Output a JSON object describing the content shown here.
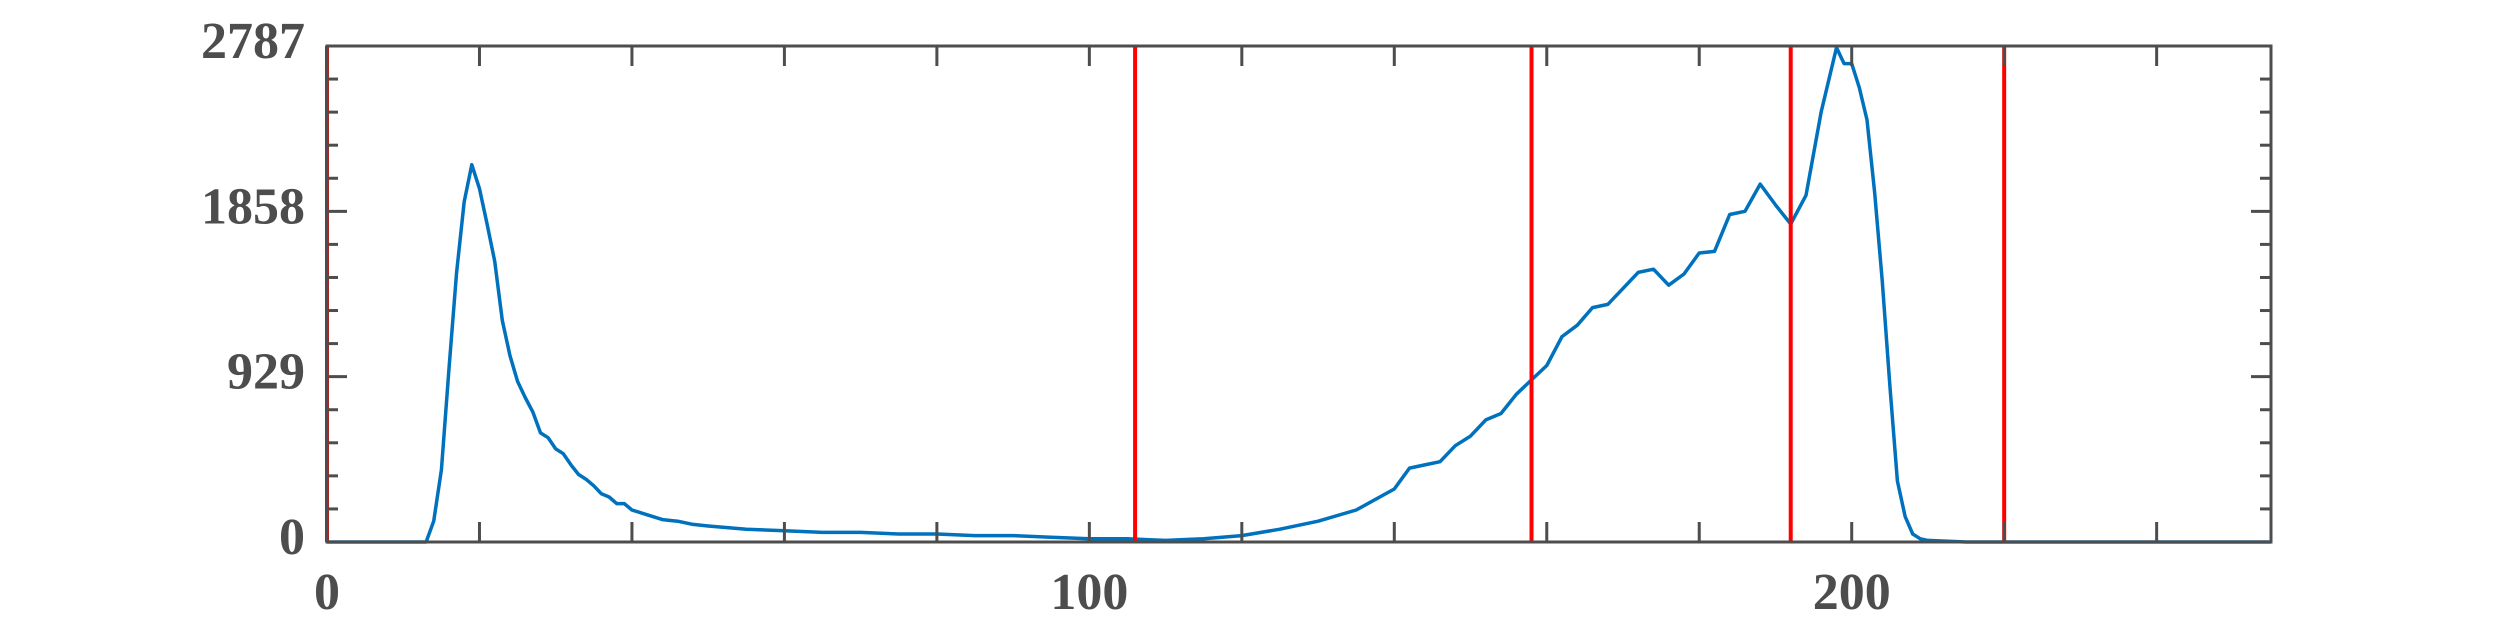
{
  "chart_data": {
    "type": "line",
    "x": [
      0,
      13,
      14,
      15,
      16,
      17,
      18,
      19,
      20,
      21,
      22,
      23,
      24,
      25,
      26,
      27,
      28,
      29,
      30,
      31,
      32,
      33,
      34,
      35,
      36,
      37,
      38,
      39,
      40,
      42,
      44,
      46,
      48,
      50,
      55,
      60,
      65,
      70,
      75,
      80,
      85,
      90,
      95,
      100,
      105,
      110,
      115,
      120,
      125,
      130,
      135,
      140,
      142,
      144,
      146,
      148,
      150,
      152,
      154,
      156,
      158,
      160,
      162,
      164,
      166,
      168,
      170,
      172,
      174,
      176,
      178,
      180,
      182,
      184,
      186,
      188,
      190,
      192,
      194,
      196,
      198,
      199,
      200,
      201,
      202,
      203,
      204,
      205,
      206,
      207,
      208,
      209,
      210,
      215,
      255
    ],
    "values": [
      0,
      0,
      117,
      405,
      975,
      1515,
      1912,
      2120,
      1985,
      1786,
      1578,
      1245,
      1046,
      902,
      812,
      731,
      613,
      586,
      523,
      496,
      433,
      379,
      352,
      316,
      271,
      253,
      216,
      216,
      180,
      153,
      126,
      117,
      99,
      90,
      72,
      63,
      54,
      54,
      45,
      45,
      36,
      36,
      27,
      18,
      18,
      9,
      18,
      36,
      72,
      117,
      180,
      298,
      415,
      433,
      451,
      541,
      595,
      686,
      722,
      830,
      911,
      992,
      1154,
      1218,
      1317,
      1335,
      1425,
      1515,
      1533,
      1443,
      1506,
      1624,
      1633,
      1840,
      1858,
      2011,
      1894,
      1786,
      1948,
      2417,
      2778,
      2688,
      2688,
      2553,
      2372,
      1966,
      1470,
      884,
      343,
      144,
      45,
      18,
      9,
      0,
      0
    ],
    "color": "#0072bd",
    "xlim": [
      0,
      255
    ],
    "ylim": [
      0,
      2787
    ],
    "xticks": [
      0,
      100,
      200
    ],
    "yticks": [
      0,
      929,
      1858,
      2787
    ],
    "xminorticks": [
      20,
      40,
      60,
      80,
      120,
      140,
      160,
      180,
      220,
      240
    ],
    "yminorticks": [
      185.8,
      371.6,
      557.4,
      743.2,
      1114.8,
      1300.6,
      1486.4,
      1672.2,
      2043.8,
      2229.6,
      2415.4,
      2601.2
    ],
    "vlines": [
      0,
      106,
      158,
      192,
      220
    ],
    "vline_color": "#ff0000"
  }
}
